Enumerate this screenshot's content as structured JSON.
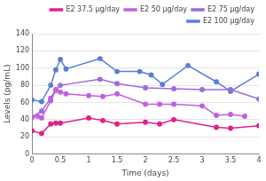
{
  "chart_data": {
    "type": "line",
    "x_label": "Time (days)",
    "y_label": "Levels (pg/mL)",
    "xlim": [
      0,
      4
    ],
    "xticks": [
      0,
      0.5,
      1,
      1.5,
      2,
      2.5,
      3,
      3.5,
      4
    ],
    "ylim": [
      0,
      140
    ],
    "yticks": [
      0,
      20,
      40,
      60,
      80,
      100,
      120,
      140
    ],
    "grid": "y",
    "legend": "top",
    "marker": "circle",
    "series": [
      {
        "name": "E2 37.5 μg/day",
        "color": "#e0208a",
        "x": [
          0,
          0.17,
          0.33,
          0.42,
          0.5,
          1.0,
          1.25,
          1.5,
          2.0,
          2.25,
          2.5,
          3.25,
          3.5,
          4.0
        ],
        "values": [
          27,
          24,
          35,
          36,
          36,
          42,
          39,
          35,
          37,
          35,
          40,
          31,
          30,
          33
        ]
      },
      {
        "name": "E2 50 μg/day",
        "color": "#c060e0",
        "x": [
          0,
          0.1,
          0.17,
          0.33,
          0.42,
          0.5,
          0.6,
          1.0,
          1.25,
          1.5,
          2.0,
          2.25,
          2.5,
          3.0,
          3.25,
          3.5,
          3.75
        ],
        "values": [
          43,
          44,
          42,
          62,
          74,
          72,
          70,
          68,
          67,
          70,
          58,
          58,
          58,
          56,
          45,
          46,
          44
        ]
      },
      {
        "name": "E2 75 μg/day",
        "color": "#9b6be0",
        "x": [
          0,
          0.17,
          0.33,
          0.42,
          0.5,
          1.2,
          1.5,
          2.0,
          2.5,
          3.0,
          3.5,
          4.0
        ],
        "values": [
          43,
          50,
          65,
          75,
          80,
          87,
          82,
          77,
          76,
          75,
          75,
          64
        ]
      },
      {
        "name": "E2 100 μg/day",
        "color": "#5a7fd6",
        "x": [
          0,
          0.17,
          0.33,
          0.42,
          0.5,
          0.6,
          1.2,
          1.5,
          1.9,
          2.1,
          2.3,
          2.75,
          3.25,
          3.5,
          4.0
        ],
        "values": [
          63,
          61,
          80,
          98,
          110,
          99,
          111,
          96,
          96,
          92,
          81,
          103,
          84,
          73,
          93
        ]
      }
    ]
  }
}
